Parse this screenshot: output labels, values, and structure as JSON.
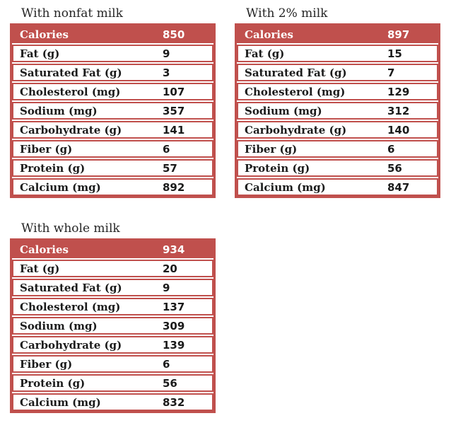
{
  "theme": {
    "accent_red": "#c0504d",
    "header_text_color": "#ffffff",
    "body_text_color": "#1b1b1b",
    "title_color": "#262626",
    "background": "#ffffff"
  },
  "tables": [
    {
      "id": "nonfat",
      "title": "With nonfat milk",
      "rows": [
        {
          "label": "Calories",
          "value": "850"
        },
        {
          "label": "Fat (g)",
          "value": "9"
        },
        {
          "label": "Saturated Fat (g)",
          "value": "3"
        },
        {
          "label": "Cholesterol (mg)",
          "value": "107"
        },
        {
          "label": "Sodium (mg)",
          "value": "357"
        },
        {
          "label": "Carbohydrate (g)",
          "value": "141"
        },
        {
          "label": "Fiber (g)",
          "value": "6"
        },
        {
          "label": "Protein (g)",
          "value": "57"
        },
        {
          "label": "Calcium (mg)",
          "value": "892"
        }
      ]
    },
    {
      "id": "two-percent",
      "title": "With 2% milk",
      "rows": [
        {
          "label": "Calories",
          "value": "897"
        },
        {
          "label": "Fat (g)",
          "value": "15"
        },
        {
          "label": "Saturated Fat (g)",
          "value": "7"
        },
        {
          "label": "Cholesterol (mg)",
          "value": "129"
        },
        {
          "label": "Sodium (mg)",
          "value": "312"
        },
        {
          "label": "Carbohydrate (g)",
          "value": "140"
        },
        {
          "label": "Fiber (g)",
          "value": "6"
        },
        {
          "label": "Protein (g)",
          "value": "56"
        },
        {
          "label": "Calcium (mg)",
          "value": "847"
        }
      ]
    },
    {
      "id": "whole",
      "title": "With whole milk",
      "rows": [
        {
          "label": "Calories",
          "value": "934"
        },
        {
          "label": "Fat (g)",
          "value": "20"
        },
        {
          "label": "Saturated Fat (g)",
          "value": "9"
        },
        {
          "label": "Cholesterol (mg)",
          "value": "137"
        },
        {
          "label": "Sodium (mg)",
          "value": "309"
        },
        {
          "label": "Carbohydrate (g)",
          "value": "139"
        },
        {
          "label": "Fiber (g)",
          "value": "6"
        },
        {
          "label": "Protein (g)",
          "value": "56"
        },
        {
          "label": "Calcium (mg)",
          "value": "832"
        }
      ]
    }
  ]
}
